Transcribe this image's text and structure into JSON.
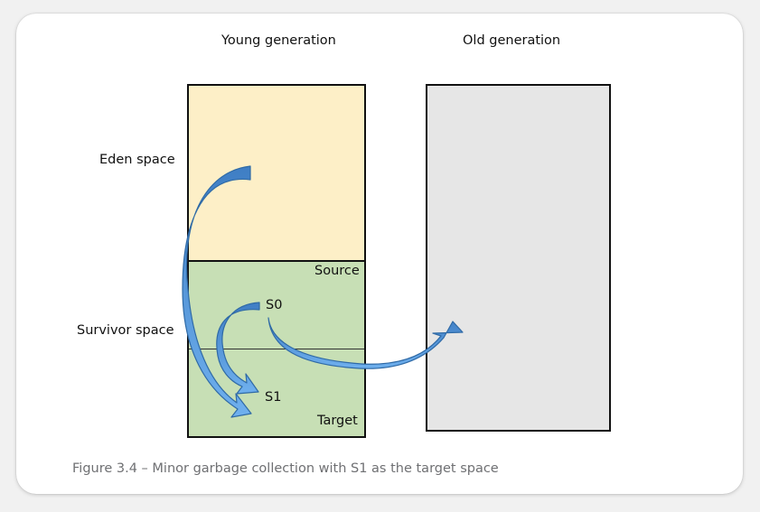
{
  "headings": {
    "young": "Young generation",
    "old": "Old generation"
  },
  "spaces": {
    "eden": "Eden space",
    "survivor": "Survivor space"
  },
  "young_labels": {
    "source": "Source",
    "s0": "S0",
    "s1": "S1",
    "target": "Target"
  },
  "caption": "Figure 3.4 – Minor garbage collection with S1 as the target space",
  "colors": {
    "eden_fill": "#fdefc7",
    "survivor_fill": "#c7dfb5",
    "old_fill": "#e6e6e6",
    "arrow_fill": "#4d8fd6",
    "arrow_stroke": "#2f6aa6"
  }
}
